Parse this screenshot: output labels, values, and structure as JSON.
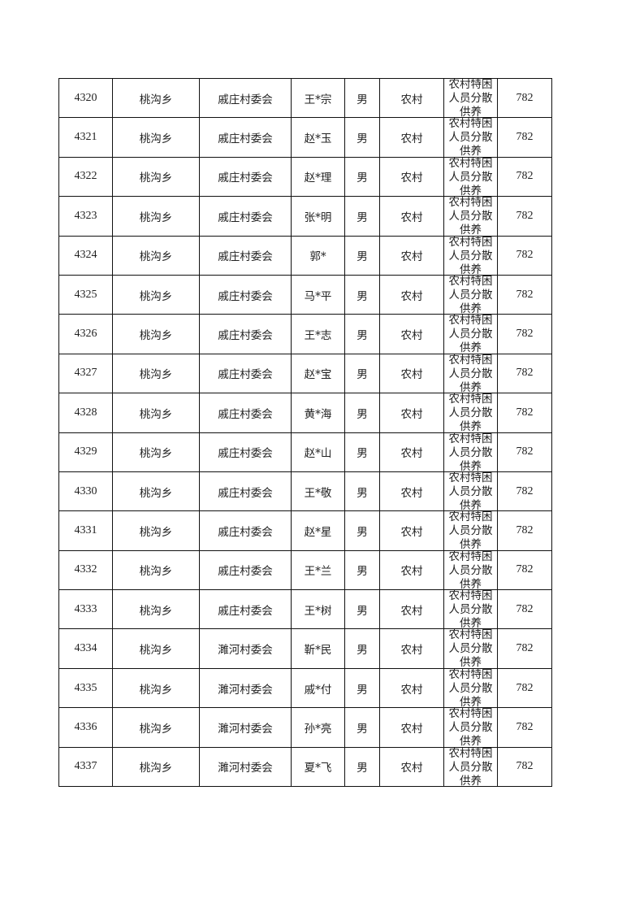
{
  "rows": [
    {
      "no": "4320",
      "town": "桃沟乡",
      "village": "戚庄村委会",
      "name": "王*宗",
      "gender": "男",
      "type": "农村",
      "category": "农村特困人员分散供养",
      "amount": "782"
    },
    {
      "no": "4321",
      "town": "桃沟乡",
      "village": "戚庄村委会",
      "name": "赵*玉",
      "gender": "男",
      "type": "农村",
      "category": "农村特困人员分散供养",
      "amount": "782"
    },
    {
      "no": "4322",
      "town": "桃沟乡",
      "village": "戚庄村委会",
      "name": "赵*理",
      "gender": "男",
      "type": "农村",
      "category": "农村特困人员分散供养",
      "amount": "782"
    },
    {
      "no": "4323",
      "town": "桃沟乡",
      "village": "戚庄村委会",
      "name": "张*明",
      "gender": "男",
      "type": "农村",
      "category": "农村特困人员分散供养",
      "amount": "782"
    },
    {
      "no": "4324",
      "town": "桃沟乡",
      "village": "戚庄村委会",
      "name": "郭*",
      "gender": "男",
      "type": "农村",
      "category": "农村特困人员分散供养",
      "amount": "782"
    },
    {
      "no": "4325",
      "town": "桃沟乡",
      "village": "戚庄村委会",
      "name": "马*平",
      "gender": "男",
      "type": "农村",
      "category": "农村特困人员分散供养",
      "amount": "782"
    },
    {
      "no": "4326",
      "town": "桃沟乡",
      "village": "戚庄村委会",
      "name": "王*志",
      "gender": "男",
      "type": "农村",
      "category": "农村特困人员分散供养",
      "amount": "782"
    },
    {
      "no": "4327",
      "town": "桃沟乡",
      "village": "戚庄村委会",
      "name": "赵*宝",
      "gender": "男",
      "type": "农村",
      "category": "农村特困人员分散供养",
      "amount": "782"
    },
    {
      "no": "4328",
      "town": "桃沟乡",
      "village": "戚庄村委会",
      "name": "黄*海",
      "gender": "男",
      "type": "农村",
      "category": "农村特困人员分散供养",
      "amount": "782"
    },
    {
      "no": "4329",
      "town": "桃沟乡",
      "village": "戚庄村委会",
      "name": "赵*山",
      "gender": "男",
      "type": "农村",
      "category": "农村特困人员分散供养",
      "amount": "782"
    },
    {
      "no": "4330",
      "town": "桃沟乡",
      "village": "戚庄村委会",
      "name": "王*敬",
      "gender": "男",
      "type": "农村",
      "category": "农村特困人员分散供养",
      "amount": "782"
    },
    {
      "no": "4331",
      "town": "桃沟乡",
      "village": "戚庄村委会",
      "name": "赵*星",
      "gender": "男",
      "type": "农村",
      "category": "农村特困人员分散供养",
      "amount": "782"
    },
    {
      "no": "4332",
      "town": "桃沟乡",
      "village": "戚庄村委会",
      "name": "王*兰",
      "gender": "男",
      "type": "农村",
      "category": "农村特困人员分散供养",
      "amount": "782"
    },
    {
      "no": "4333",
      "town": "桃沟乡",
      "village": "戚庄村委会",
      "name": "王*树",
      "gender": "男",
      "type": "农村",
      "category": "农村特困人员分散供养",
      "amount": "782"
    },
    {
      "no": "4334",
      "town": "桃沟乡",
      "village": "濉河村委会",
      "name": "靳*民",
      "gender": "男",
      "type": "农村",
      "category": "农村特困人员分散供养",
      "amount": "782"
    },
    {
      "no": "4335",
      "town": "桃沟乡",
      "village": "濉河村委会",
      "name": "戚*付",
      "gender": "男",
      "type": "农村",
      "category": "农村特困人员分散供养",
      "amount": "782"
    },
    {
      "no": "4336",
      "town": "桃沟乡",
      "village": "濉河村委会",
      "name": "孙*亮",
      "gender": "男",
      "type": "农村",
      "category": "农村特困人员分散供养",
      "amount": "782"
    },
    {
      "no": "4337",
      "town": "桃沟乡",
      "village": "濉河村委会",
      "name": "夏*飞",
      "gender": "男",
      "type": "农村",
      "category": "农村特困人员分散供养",
      "amount": "782"
    }
  ]
}
